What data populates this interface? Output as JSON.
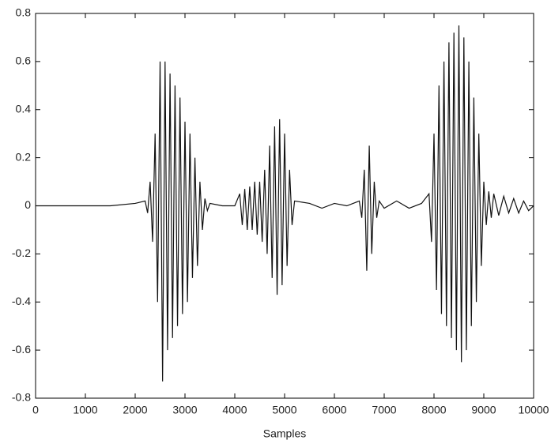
{
  "chart_data": {
    "type": "line",
    "x_label": "Samples",
    "color": "#111111",
    "xlim": [
      0,
      10000
    ],
    "xticks": [
      0,
      1000,
      2000,
      3000,
      4000,
      5000,
      6000,
      7000,
      8000,
      9000,
      10000
    ],
    "ylim": [
      -0.8,
      0.8
    ],
    "yticks": [
      -0.8,
      -0.6,
      -0.4,
      -0.2,
      0,
      0.2,
      0.4,
      0.6,
      0.8
    ],
    "x": [
      0,
      500,
      1000,
      1500,
      2000,
      2200,
      2250,
      2300,
      2350,
      2400,
      2450,
      2500,
      2550,
      2600,
      2650,
      2700,
      2750,
      2800,
      2850,
      2900,
      2950,
      3000,
      3050,
      3100,
      3150,
      3200,
      3250,
      3300,
      3350,
      3400,
      3450,
      3500,
      3750,
      4000,
      4100,
      4150,
      4200,
      4250,
      4300,
      4350,
      4400,
      4450,
      4500,
      4550,
      4600,
      4650,
      4700,
      4750,
      4800,
      4850,
      4900,
      4950,
      5000,
      5050,
      5100,
      5150,
      5200,
      5500,
      5750,
      6000,
      6250,
      6500,
      6550,
      6600,
      6650,
      6700,
      6750,
      6800,
      6850,
      6900,
      7000,
      7250,
      7500,
      7750,
      7900,
      7950,
      8000,
      8050,
      8100,
      8150,
      8200,
      8250,
      8300,
      8350,
      8400,
      8450,
      8500,
      8550,
      8600,
      8650,
      8700,
      8750,
      8800,
      8850,
      8900,
      8950,
      9000,
      9050,
      9100,
      9150,
      9200,
      9300,
      9400,
      9500,
      9600,
      9700,
      9800,
      9900,
      10000
    ],
    "values": [
      0,
      0,
      0,
      0,
      0.01,
      0.02,
      -0.03,
      0.1,
      -0.15,
      0.3,
      -0.4,
      0.6,
      -0.73,
      0.6,
      -0.6,
      0.55,
      -0.55,
      0.5,
      -0.5,
      0.45,
      -0.45,
      0.35,
      -0.4,
      0.3,
      -0.3,
      0.2,
      -0.25,
      0.1,
      -0.1,
      0.03,
      -0.02,
      0.01,
      0,
      0,
      0.05,
      -0.08,
      0.07,
      -0.1,
      0.08,
      -0.1,
      0.1,
      -0.12,
      0.1,
      -0.15,
      0.15,
      -0.2,
      0.25,
      -0.3,
      0.33,
      -0.37,
      0.36,
      -0.33,
      0.3,
      -0.25,
      0.15,
      -0.08,
      0.02,
      0.01,
      -0.01,
      0.01,
      0,
      0.02,
      -0.05,
      0.15,
      -0.27,
      0.25,
      -0.2,
      0.1,
      -0.05,
      0.02,
      -0.01,
      0.02,
      -0.01,
      0.01,
      0.05,
      -0.15,
      0.3,
      -0.35,
      0.5,
      -0.45,
      0.6,
      -0.5,
      0.68,
      -0.55,
      0.72,
      -0.6,
      0.75,
      -0.65,
      0.7,
      -0.6,
      0.6,
      -0.5,
      0.45,
      -0.4,
      0.3,
      -0.25,
      0.1,
      -0.08,
      0.06,
      -0.05,
      0.05,
      -0.04,
      0.04,
      -0.03,
      0.03,
      -0.03,
      0.02,
      -0.02,
      0
    ]
  }
}
